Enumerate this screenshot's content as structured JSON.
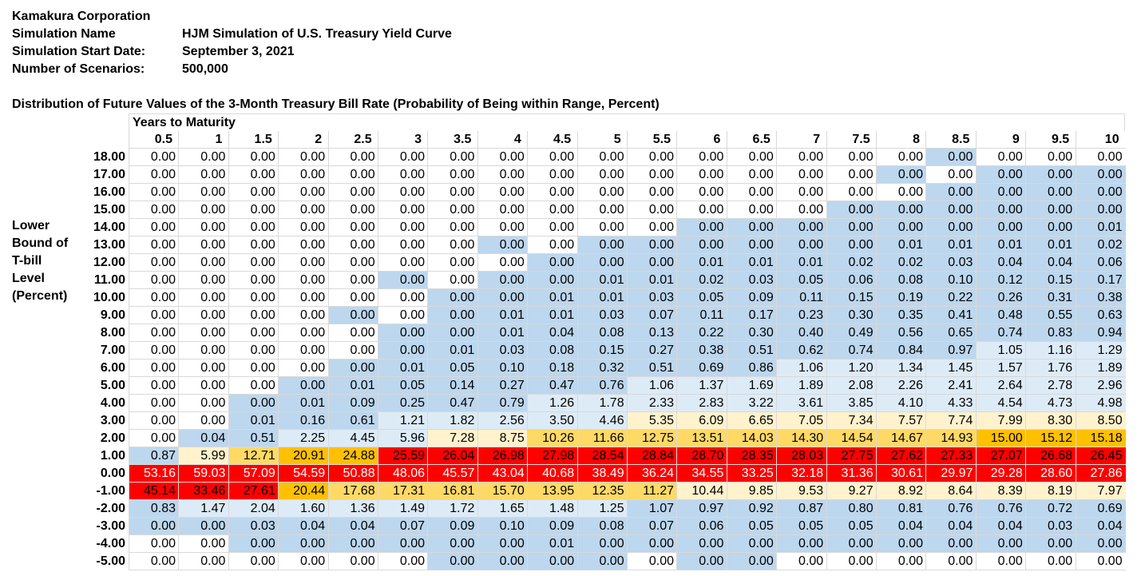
{
  "header": {
    "company": "Kamakura Corporation",
    "fields": [
      {
        "label": "Simulation Name",
        "value": "HJM Simulation of U.S. Treasury Yield Curve"
      },
      {
        "label": "Simulation Start Date:",
        "value": "September 3, 2021"
      },
      {
        "label": "Number of Scenarios:",
        "value": "500,000"
      }
    ]
  },
  "table_title": "Distribution of Future Values of the 3-Month Treasury Bill Rate (Probability of Being within Range, Percent)",
  "column_group_label": "Years to Maturity",
  "row_axis_label": [
    "Lower",
    "Bound of",
    "T-bill",
    "Level",
    "(Percent)"
  ],
  "columns": [
    "0.5",
    "1",
    "1.5",
    "2",
    "2.5",
    "3",
    "3.5",
    "4",
    "4.5",
    "5",
    "5.5",
    "6",
    "6.5",
    "7",
    "7.5",
    "8",
    "8.5",
    "9",
    "9.5",
    "10"
  ],
  "colors": {
    "blue": "#bdd7ee",
    "lightblue": "#ddebf7",
    "cream": "#fff2cc",
    "yellow": "#ffd966",
    "orange": "#ffc000",
    "red": "#ff0000",
    "white": "#ffffff"
  },
  "legend_codes": {
    "w": "white",
    "b": "blue",
    "l": "lightblue",
    "c": "cream",
    "y": "yellow",
    "o": "orange",
    "r": "red"
  },
  "rows": [
    {
      "label": "18.00",
      "values": [
        "0.00",
        "0.00",
        "0.00",
        "0.00",
        "0.00",
        "0.00",
        "0.00",
        "0.00",
        "0.00",
        "0.00",
        "0.00",
        "0.00",
        "0.00",
        "0.00",
        "0.00",
        "0.00",
        "0.00",
        "0.00",
        "0.00",
        "0.00"
      ],
      "fills": "wwwwwwwwwwwwwwwwbwww"
    },
    {
      "label": "17.00",
      "values": [
        "0.00",
        "0.00",
        "0.00",
        "0.00",
        "0.00",
        "0.00",
        "0.00",
        "0.00",
        "0.00",
        "0.00",
        "0.00",
        "0.00",
        "0.00",
        "0.00",
        "0.00",
        "0.00",
        "0.00",
        "0.00",
        "0.00",
        "0.00"
      ],
      "fills": "wwwwwwwwwwwwwwwbwbbb"
    },
    {
      "label": "16.00",
      "values": [
        "0.00",
        "0.00",
        "0.00",
        "0.00",
        "0.00",
        "0.00",
        "0.00",
        "0.00",
        "0.00",
        "0.00",
        "0.00",
        "0.00",
        "0.00",
        "0.00",
        "0.00",
        "0.00",
        "0.00",
        "0.00",
        "0.00",
        "0.00"
      ],
      "fills": "wwwwwwwwwwwwwwwwbbbb"
    },
    {
      "label": "15.00",
      "values": [
        "0.00",
        "0.00",
        "0.00",
        "0.00",
        "0.00",
        "0.00",
        "0.00",
        "0.00",
        "0.00",
        "0.00",
        "0.00",
        "0.00",
        "0.00",
        "0.00",
        "0.00",
        "0.00",
        "0.00",
        "0.00",
        "0.00",
        "0.00"
      ],
      "fills": "wwwwwwwwwwwwwwbbbbbb"
    },
    {
      "label": "14.00",
      "values": [
        "0.00",
        "0.00",
        "0.00",
        "0.00",
        "0.00",
        "0.00",
        "0.00",
        "0.00",
        "0.00",
        "0.00",
        "0.00",
        "0.00",
        "0.00",
        "0.00",
        "0.00",
        "0.00",
        "0.00",
        "0.00",
        "0.00",
        "0.01"
      ],
      "fills": "wwwwwwwwwwwbbbbbbbbb"
    },
    {
      "label": "13.00",
      "values": [
        "0.00",
        "0.00",
        "0.00",
        "0.00",
        "0.00",
        "0.00",
        "0.00",
        "0.00",
        "0.00",
        "0.00",
        "0.00",
        "0.00",
        "0.00",
        "0.00",
        "0.00",
        "0.01",
        "0.01",
        "0.01",
        "0.01",
        "0.02"
      ],
      "fills": "wwwwwwwbwbbbbbbbbbbb"
    },
    {
      "label": "12.00",
      "values": [
        "0.00",
        "0.00",
        "0.00",
        "0.00",
        "0.00",
        "0.00",
        "0.00",
        "0.00",
        "0.00",
        "0.00",
        "0.00",
        "0.01",
        "0.01",
        "0.01",
        "0.02",
        "0.02",
        "0.03",
        "0.04",
        "0.04",
        "0.06"
      ],
      "fills": "wwwwwwwwbbbbbbbbbbbb"
    },
    {
      "label": "11.00",
      "values": [
        "0.00",
        "0.00",
        "0.00",
        "0.00",
        "0.00",
        "0.00",
        "0.00",
        "0.00",
        "0.00",
        "0.01",
        "0.01",
        "0.02",
        "0.03",
        "0.05",
        "0.06",
        "0.08",
        "0.10",
        "0.12",
        "0.15",
        "0.17"
      ],
      "fills": "wwwwwbwbbbbbbbbbbbbb"
    },
    {
      "label": "10.00",
      "values": [
        "0.00",
        "0.00",
        "0.00",
        "0.00",
        "0.00",
        "0.00",
        "0.00",
        "0.00",
        "0.01",
        "0.01",
        "0.03",
        "0.05",
        "0.09",
        "0.11",
        "0.15",
        "0.19",
        "0.22",
        "0.26",
        "0.31",
        "0.38"
      ],
      "fills": "wwwwwwbbbbbbbbbbbbbb"
    },
    {
      "label": "9.00",
      "values": [
        "0.00",
        "0.00",
        "0.00",
        "0.00",
        "0.00",
        "0.00",
        "0.00",
        "0.01",
        "0.01",
        "0.03",
        "0.07",
        "0.11",
        "0.17",
        "0.23",
        "0.30",
        "0.35",
        "0.41",
        "0.48",
        "0.55",
        "0.63"
      ],
      "fills": "wwwwbwbbbbbbbbbbbbbb"
    },
    {
      "label": "8.00",
      "values": [
        "0.00",
        "0.00",
        "0.00",
        "0.00",
        "0.00",
        "0.00",
        "0.00",
        "0.01",
        "0.04",
        "0.08",
        "0.13",
        "0.22",
        "0.30",
        "0.40",
        "0.49",
        "0.56",
        "0.65",
        "0.74",
        "0.83",
        "0.94"
      ],
      "fills": "wwwwwbbbbbbbbbbbbbbb"
    },
    {
      "label": "7.00",
      "values": [
        "0.00",
        "0.00",
        "0.00",
        "0.00",
        "0.00",
        "0.00",
        "0.01",
        "0.03",
        "0.08",
        "0.15",
        "0.27",
        "0.38",
        "0.51",
        "0.62",
        "0.74",
        "0.84",
        "0.97",
        "1.05",
        "1.16",
        "1.29"
      ],
      "fills": "wwwwwbbbbbbbbbbbblll"
    },
    {
      "label": "6.00",
      "values": [
        "0.00",
        "0.00",
        "0.00",
        "0.00",
        "0.00",
        "0.01",
        "0.05",
        "0.10",
        "0.18",
        "0.32",
        "0.51",
        "0.69",
        "0.86",
        "1.06",
        "1.20",
        "1.34",
        "1.45",
        "1.57",
        "1.76",
        "1.89"
      ],
      "fills": "wwwwbbbbbbbbblllllll"
    },
    {
      "label": "5.00",
      "values": [
        "0.00",
        "0.00",
        "0.00",
        "0.00",
        "0.01",
        "0.05",
        "0.14",
        "0.27",
        "0.47",
        "0.76",
        "1.06",
        "1.37",
        "1.69",
        "1.89",
        "2.08",
        "2.26",
        "2.41",
        "2.64",
        "2.78",
        "2.96"
      ],
      "fills": "wwwbbbbbbbllllllllll"
    },
    {
      "label": "4.00",
      "values": [
        "0.00",
        "0.00",
        "0.00",
        "0.01",
        "0.09",
        "0.25",
        "0.47",
        "0.79",
        "1.26",
        "1.78",
        "2.33",
        "2.83",
        "3.22",
        "3.61",
        "3.85",
        "4.10",
        "4.33",
        "4.54",
        "4.73",
        "4.98"
      ],
      "fills": "wwbbbbbbllllllllllll"
    },
    {
      "label": "3.00",
      "values": [
        "0.00",
        "0.00",
        "0.01",
        "0.16",
        "0.61",
        "1.21",
        "1.82",
        "2.56",
        "3.50",
        "4.46",
        "5.35",
        "6.09",
        "6.65",
        "7.05",
        "7.34",
        "7.57",
        "7.74",
        "7.99",
        "8.30",
        "8.50"
      ],
      "fills": "wwbbblllllcccccccccc"
    },
    {
      "label": "2.00",
      "values": [
        "0.00",
        "0.04",
        "0.51",
        "2.25",
        "4.45",
        "5.96",
        "7.28",
        "8.75",
        "10.26",
        "11.66",
        "12.75",
        "13.51",
        "14.03",
        "14.30",
        "14.54",
        "14.67",
        "14.93",
        "15.00",
        "15.12",
        "15.18"
      ],
      "fills": "wbblllccyyyyyyyyyooo"
    },
    {
      "label": "1.00",
      "values": [
        "0.87",
        "5.99",
        "12.71",
        "20.91",
        "24.88",
        "25.59",
        "26.04",
        "26.98",
        "27.98",
        "28.54",
        "28.84",
        "28.70",
        "28.35",
        "28.03",
        "27.75",
        "27.62",
        "27.33",
        "27.07",
        "26.68",
        "26.45"
      ],
      "fills": "bcyoorrrrrrrrrrrrrrr"
    },
    {
      "label": "0.00",
      "values": [
        "53.16",
        "59.03",
        "57.09",
        "54.59",
        "50.88",
        "48.06",
        "45.57",
        "43.04",
        "40.68",
        "38.49",
        "36.24",
        "34.55",
        "33.25",
        "32.18",
        "31.36",
        "30.61",
        "29.97",
        "29.28",
        "28.60",
        "27.86"
      ],
      "fills": "rrrrrrrrrrrrrrrrrrrr"
    },
    {
      "label": "-1.00",
      "values": [
        "45.14",
        "33.46",
        "27.61",
        "20.44",
        "17.68",
        "17.31",
        "16.81",
        "15.70",
        "13.95",
        "12.35",
        "11.27",
        "10.44",
        "9.85",
        "9.53",
        "9.27",
        "8.92",
        "8.64",
        "8.39",
        "8.19",
        "7.97"
      ],
      "fills": "rrroyyyyyyyccccccccc"
    },
    {
      "label": "-2.00",
      "values": [
        "0.83",
        "1.47",
        "2.04",
        "1.60",
        "1.36",
        "1.49",
        "1.72",
        "1.65",
        "1.48",
        "1.25",
        "1.07",
        "0.97",
        "0.92",
        "0.87",
        "0.80",
        "0.81",
        "0.76",
        "0.76",
        "0.72",
        "0.69"
      ],
      "fills": "blllllllllbbbbbbbbbb"
    },
    {
      "label": "-3.00",
      "values": [
        "0.00",
        "0.00",
        "0.03",
        "0.04",
        "0.04",
        "0.07",
        "0.09",
        "0.10",
        "0.09",
        "0.08",
        "0.07",
        "0.06",
        "0.05",
        "0.05",
        "0.05",
        "0.04",
        "0.04",
        "0.04",
        "0.03",
        "0.04"
      ],
      "fills": "bbbbbbbbbbbbbbbbbbbb"
    },
    {
      "label": "-4.00",
      "values": [
        "0.00",
        "0.00",
        "0.00",
        "0.00",
        "0.00",
        "0.00",
        "0.00",
        "0.00",
        "0.01",
        "0.00",
        "0.00",
        "0.00",
        "0.00",
        "0.00",
        "0.00",
        "0.00",
        "0.00",
        "0.00",
        "0.00",
        "0.00"
      ],
      "fills": "wwbbbbbbbbbbbbbbbbbb"
    },
    {
      "label": "-5.00",
      "values": [
        "0.00",
        "0.00",
        "0.00",
        "0.00",
        "0.00",
        "0.00",
        "0.00",
        "0.00",
        "0.00",
        "0.00",
        "0.00",
        "0.00",
        "0.00",
        "0.00",
        "0.00",
        "0.00",
        "0.00",
        "0.00",
        "0.00",
        "0.00"
      ],
      "fills": "wwwwwwbbbbwbbwwwwwww"
    }
  ]
}
